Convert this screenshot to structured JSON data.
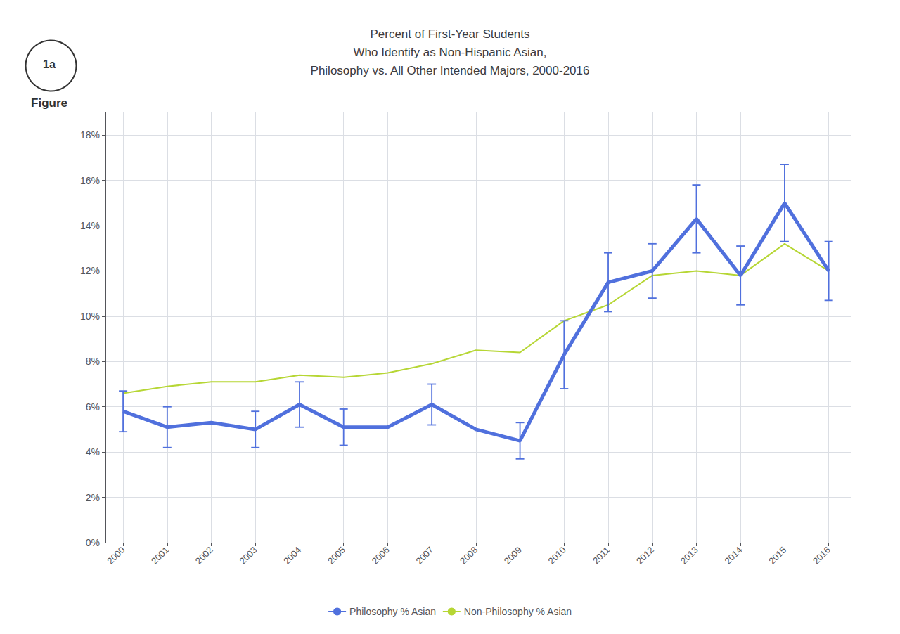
{
  "chart_data": {
    "type": "line",
    "title": "Percent of First-Year Students\nWho Identify as Non-Hispanic Asian,\nPhilosophy vs. All Other Intended Majors, 2000-2016",
    "annotations": [
      "1a",
      "Figure"
    ],
    "x": [
      2000,
      2001,
      2002,
      2003,
      2004,
      2005,
      2006,
      2007,
      2008,
      2009,
      2010,
      2011,
      2012,
      2013,
      2014,
      2015,
      2016
    ],
    "xlim": [
      1999.6,
      2016.5
    ],
    "xticks": [
      2000,
      2001,
      2002,
      2003,
      2004,
      2005,
      2006,
      2007,
      2008,
      2009,
      2010,
      2011,
      2012,
      2013,
      2014,
      2015,
      2016
    ],
    "ylim": [
      0,
      19
    ],
    "yticks": [
      {
        "value": 0,
        "label": "0%"
      },
      {
        "value": 2,
        "label": "2%"
      },
      {
        "value": 4,
        "label": "4%"
      },
      {
        "value": 6,
        "label": "6%"
      },
      {
        "value": 8,
        "label": "8%"
      },
      {
        "value": 10,
        "label": "10%"
      },
      {
        "value": 12,
        "label": "12%"
      },
      {
        "value": 14,
        "label": "14%"
      },
      {
        "value": 16,
        "label": "16%"
      },
      {
        "value": 18,
        "label": "18%"
      }
    ],
    "grid": true,
    "legend": "bottom",
    "series": [
      {
        "name": "Philosophy % Asian",
        "values": [
          5.8,
          5.1,
          5.3,
          5.0,
          6.1,
          5.1,
          5.1,
          6.1,
          5.0,
          4.5,
          8.3,
          11.5,
          12.0,
          14.3,
          11.8,
          15.0,
          12.0
        ],
        "error": [
          0.9,
          0.9,
          null,
          0.8,
          1.0,
          0.8,
          null,
          0.9,
          null,
          0.8,
          1.5,
          1.3,
          1.2,
          1.5,
          1.3,
          1.7,
          1.3
        ]
      },
      {
        "name": "Non-Philosophy % Asian",
        "values": [
          6.6,
          6.9,
          7.1,
          7.1,
          7.4,
          7.3,
          7.5,
          7.9,
          8.5,
          8.4,
          9.8,
          10.5,
          11.8,
          12.0,
          11.8,
          13.2,
          12.0
        ]
      }
    ]
  }
}
